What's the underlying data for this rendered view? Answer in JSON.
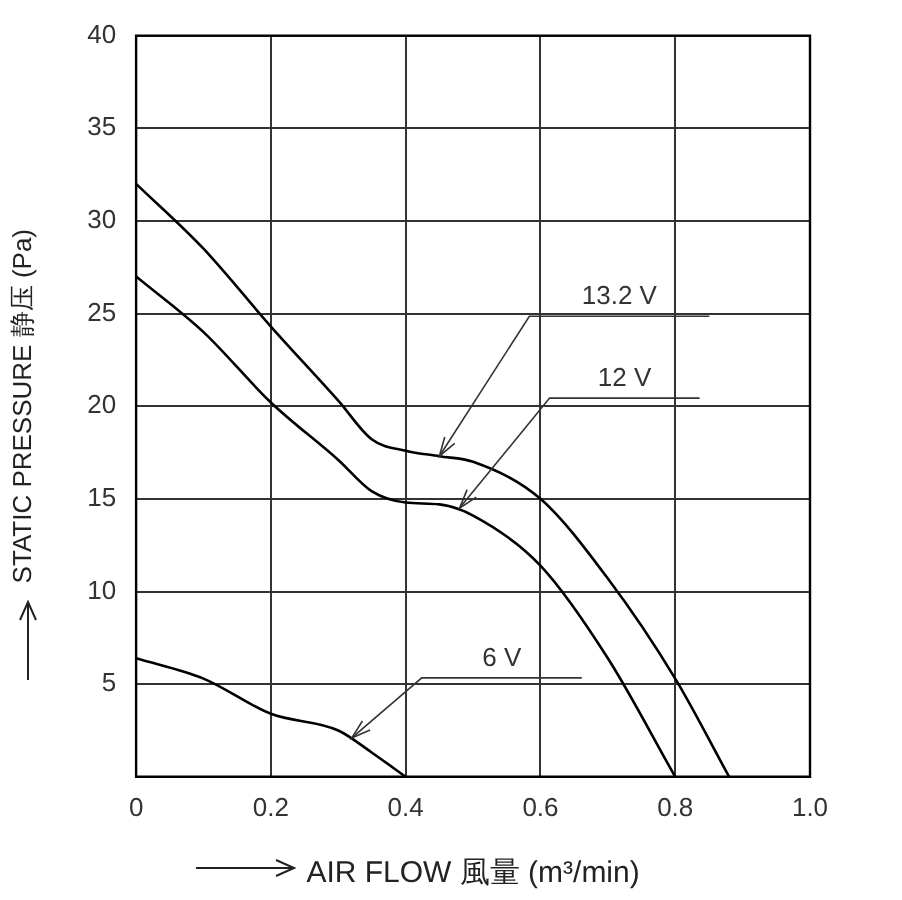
{
  "chart_data": {
    "type": "line",
    "xlabel": "AIR FLOW 風量 (m³/min)",
    "ylabel": "STATIC PRESSURE 静压 (Pa)",
    "xlim": [
      0,
      1
    ],
    "xticks": [
      0,
      0.2,
      0.4,
      0.6,
      0.8,
      {
        "value": 1,
        "label": "1.0"
      }
    ],
    "ylim": [
      0,
      40
    ],
    "yticks": [
      5,
      10,
      15,
      20,
      25,
      30,
      35,
      40
    ],
    "grid": true,
    "legend": false,
    "marker": "none",
    "line_style": "solid",
    "series": [
      {
        "color": "#000000",
        "x": [
          0,
          0.1,
          0.2,
          0.3,
          0.35,
          0.4,
          0.45,
          0.5,
          0.6,
          0.7,
          0.8,
          0.88
        ],
        "values": [
          32,
          28.5,
          24.3,
          20.3,
          18.2,
          17.6,
          17.3,
          17,
          15,
          10.7,
          5.3,
          0
        ]
      },
      {
        "color": "#000000",
        "x": [
          0,
          0.1,
          0.2,
          0.3,
          0.35,
          0.4,
          0.45,
          0.5,
          0.6,
          0.7,
          0.8
        ],
        "values": [
          27,
          24,
          20.2,
          17.1,
          15.4,
          14.8,
          14.7,
          14.1,
          11.4,
          6.4,
          0
        ]
      },
      {
        "color": "#000000",
        "x": [
          0,
          0.1,
          0.2,
          0.3,
          0.35,
          0.4
        ],
        "values": [
          6.4,
          5.3,
          3.4,
          2.5,
          1.3,
          0
        ]
      }
    ],
    "annotations": [
      {
        "text": "13.2 V",
        "x": 0.45,
        "y": 17.3
      },
      {
        "text": "12 V",
        "x": 0.48,
        "y": 14.5
      },
      {
        "text": "6 V",
        "x": 0.32,
        "y": 2.1
      }
    ]
  }
}
